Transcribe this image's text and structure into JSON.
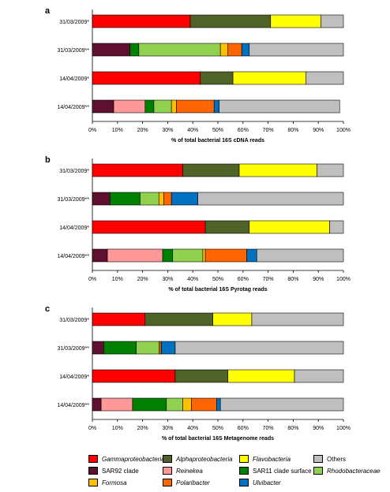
{
  "chart_data": [
    {
      "type": "bar",
      "orientation": "horizontal",
      "stacked": true,
      "panel": "a",
      "categories": [
        "31/03/2009*",
        "31/03/2009**",
        "14/04/2009*",
        "14/04/2009**"
      ],
      "series": [
        {
          "name": "Gammaproteobacteria",
          "values": [
            39,
            0,
            43,
            0
          ]
        },
        {
          "name": "Alphaproteobacteria",
          "values": [
            32,
            0,
            13,
            0
          ]
        },
        {
          "name": "Flavobacteria",
          "values": [
            20,
            0,
            29,
            0
          ]
        },
        {
          "name": "Others",
          "values": [
            9,
            37.5,
            15,
            48
          ]
        },
        {
          "name": "SAR92 clade",
          "values": [
            0,
            15,
            0,
            8.5
          ]
        },
        {
          "name": "Reinekea",
          "values": [
            0,
            0,
            0,
            12.5
          ]
        },
        {
          "name": "SAR11 clade surface 1",
          "values": [
            0,
            3.5,
            0,
            3.5
          ]
        },
        {
          "name": "Rhodobacteraceae",
          "values": [
            0,
            32.5,
            0,
            7
          ]
        },
        {
          "name": "Formosa",
          "values": [
            0,
            3,
            0,
            2
          ]
        },
        {
          "name": "Polaribacter",
          "values": [
            0,
            5.5,
            0,
            15
          ]
        },
        {
          "name": "Ulvibacter",
          "values": [
            0,
            3,
            0,
            2
          ]
        }
      ],
      "xlabel": "% of total bacterial 16S cDNA reads",
      "xlim": [
        0,
        100
      ],
      "xticks": [
        "0%",
        "10%",
        "20%",
        "30%",
        "40%",
        "50%",
        "60%",
        "70%",
        "80%",
        "90%",
        "100%"
      ]
    },
    {
      "type": "bar",
      "orientation": "horizontal",
      "stacked": true,
      "panel": "b",
      "categories": [
        "31/03/2009*",
        "31/03/2009**",
        "14/04/2009*",
        "14/04/2009**"
      ],
      "series": [
        {
          "name": "Gammaproteobacteria",
          "values": [
            36,
            0,
            45,
            0
          ]
        },
        {
          "name": "Alphaproteobacteria",
          "values": [
            22.5,
            0,
            17.5,
            0
          ]
        },
        {
          "name": "Flavobacteria",
          "values": [
            31,
            0,
            32,
            0
          ]
        },
        {
          "name": "Others",
          "values": [
            10.5,
            58,
            5.5,
            34.5
          ]
        },
        {
          "name": "SAR92 clade",
          "values": [
            0,
            7,
            0,
            6
          ]
        },
        {
          "name": "Reinekea",
          "values": [
            0,
            0,
            0,
            22
          ]
        },
        {
          "name": "SAR11 clade surface 1",
          "values": [
            0,
            12,
            0,
            4
          ]
        },
        {
          "name": "Rhodobacteraceae",
          "values": [
            0,
            7.5,
            0,
            12
          ]
        },
        {
          "name": "Formosa",
          "values": [
            0,
            2,
            0,
            1
          ]
        },
        {
          "name": "Polaribacter",
          "values": [
            0,
            3,
            0,
            16.5
          ]
        },
        {
          "name": "Ulvibacter",
          "values": [
            0,
            10.5,
            0,
            4
          ]
        }
      ],
      "xlabel": "% of total bacterial 16S Pyrotag reads",
      "xlim": [
        0,
        100
      ],
      "xticks": [
        "0%",
        "10%",
        "20%",
        "30%",
        "40%",
        "50%",
        "60%",
        "70%",
        "80%",
        "90%",
        "100%"
      ]
    },
    {
      "type": "bar",
      "orientation": "horizontal",
      "stacked": true,
      "panel": "c",
      "categories": [
        "31/03/2009*",
        "31/03/2009**",
        "14/04/2009*",
        "14/04/2009**"
      ],
      "series": [
        {
          "name": "Gammaproteobacteria",
          "values": [
            21,
            0,
            33,
            0
          ]
        },
        {
          "name": "Alphaproteobacteria",
          "values": [
            27,
            0,
            21,
            0
          ]
        },
        {
          "name": "Flavobacteria",
          "values": [
            15.5,
            0,
            26.5,
            0
          ]
        },
        {
          "name": "Others",
          "values": [
            36.5,
            67,
            19.5,
            49
          ]
        },
        {
          "name": "SAR92 clade",
          "values": [
            0,
            4.5,
            0,
            3.5
          ]
        },
        {
          "name": "Reinekea",
          "values": [
            0,
            0,
            0,
            12.5
          ]
        },
        {
          "name": "SAR11 clade surface 1",
          "values": [
            0,
            13,
            0,
            13.5
          ]
        },
        {
          "name": "Rhodobacteraceae",
          "values": [
            0,
            9,
            0,
            6.5
          ]
        },
        {
          "name": "Formosa",
          "values": [
            0,
            0.5,
            0,
            3.5
          ]
        },
        {
          "name": "Polaribacter",
          "values": [
            0,
            0.5,
            0,
            10
          ]
        },
        {
          "name": "Ulvibacter",
          "values": [
            0,
            5.5,
            0,
            1.5
          ]
        }
      ],
      "xlabel": "% of total bacterial 16S Metagenome reads",
      "xlim": [
        0,
        100
      ],
      "xticks": [
        "0%",
        "10%",
        "20%",
        "30%",
        "40%",
        "50%",
        "60%",
        "70%",
        "80%",
        "90%",
        "100%"
      ]
    }
  ],
  "colors": {
    "Gammaproteobacteria": "#ff0000",
    "Alphaproteobacteria": "#4f6228",
    "Flavobacteria": "#ffff00",
    "Others": "#bfbfbf",
    "SAR92 clade": "#5f0f2f",
    "Reinekea": "#ff9999",
    "SAR11 clade surface 1": "#008000",
    "Rhodobacteraceae": "#92d050",
    "Formosa": "#ffc000",
    "Polaribacter": "#ff6600",
    "Ulvibacter": "#0070c0"
  },
  "legend": {
    "rows": [
      [
        {
          "label": "Gammaproteobacteria",
          "italic": true,
          "color": "#ff0000"
        },
        {
          "label": "Alphaproteobacteria",
          "italic": true,
          "color": "#4f6228"
        },
        {
          "label": "Flavobacteria",
          "italic": true,
          "color": "#ffff00"
        },
        {
          "label": "Others",
          "italic": false,
          "color": "#bfbfbf"
        }
      ],
      [
        {
          "label": "SAR92 clade",
          "italic": false,
          "color": "#5f0f2f"
        },
        {
          "label": "Reinekea",
          "italic": true,
          "color": "#ff9999"
        },
        {
          "label": "SAR11 clade surface 1",
          "italic": false,
          "color": "#008000"
        },
        {
          "label": "Rhodobacteraceae",
          "italic": true,
          "color": "#92d050"
        }
      ],
      [
        {
          "label": "Formosa",
          "italic": true,
          "color": "#ffc000"
        },
        {
          "label": "Polaribacter",
          "italic": true,
          "color": "#ff6600"
        },
        {
          "label": "Ulvibacter",
          "italic": true,
          "color": "#0070c0"
        }
      ]
    ]
  }
}
